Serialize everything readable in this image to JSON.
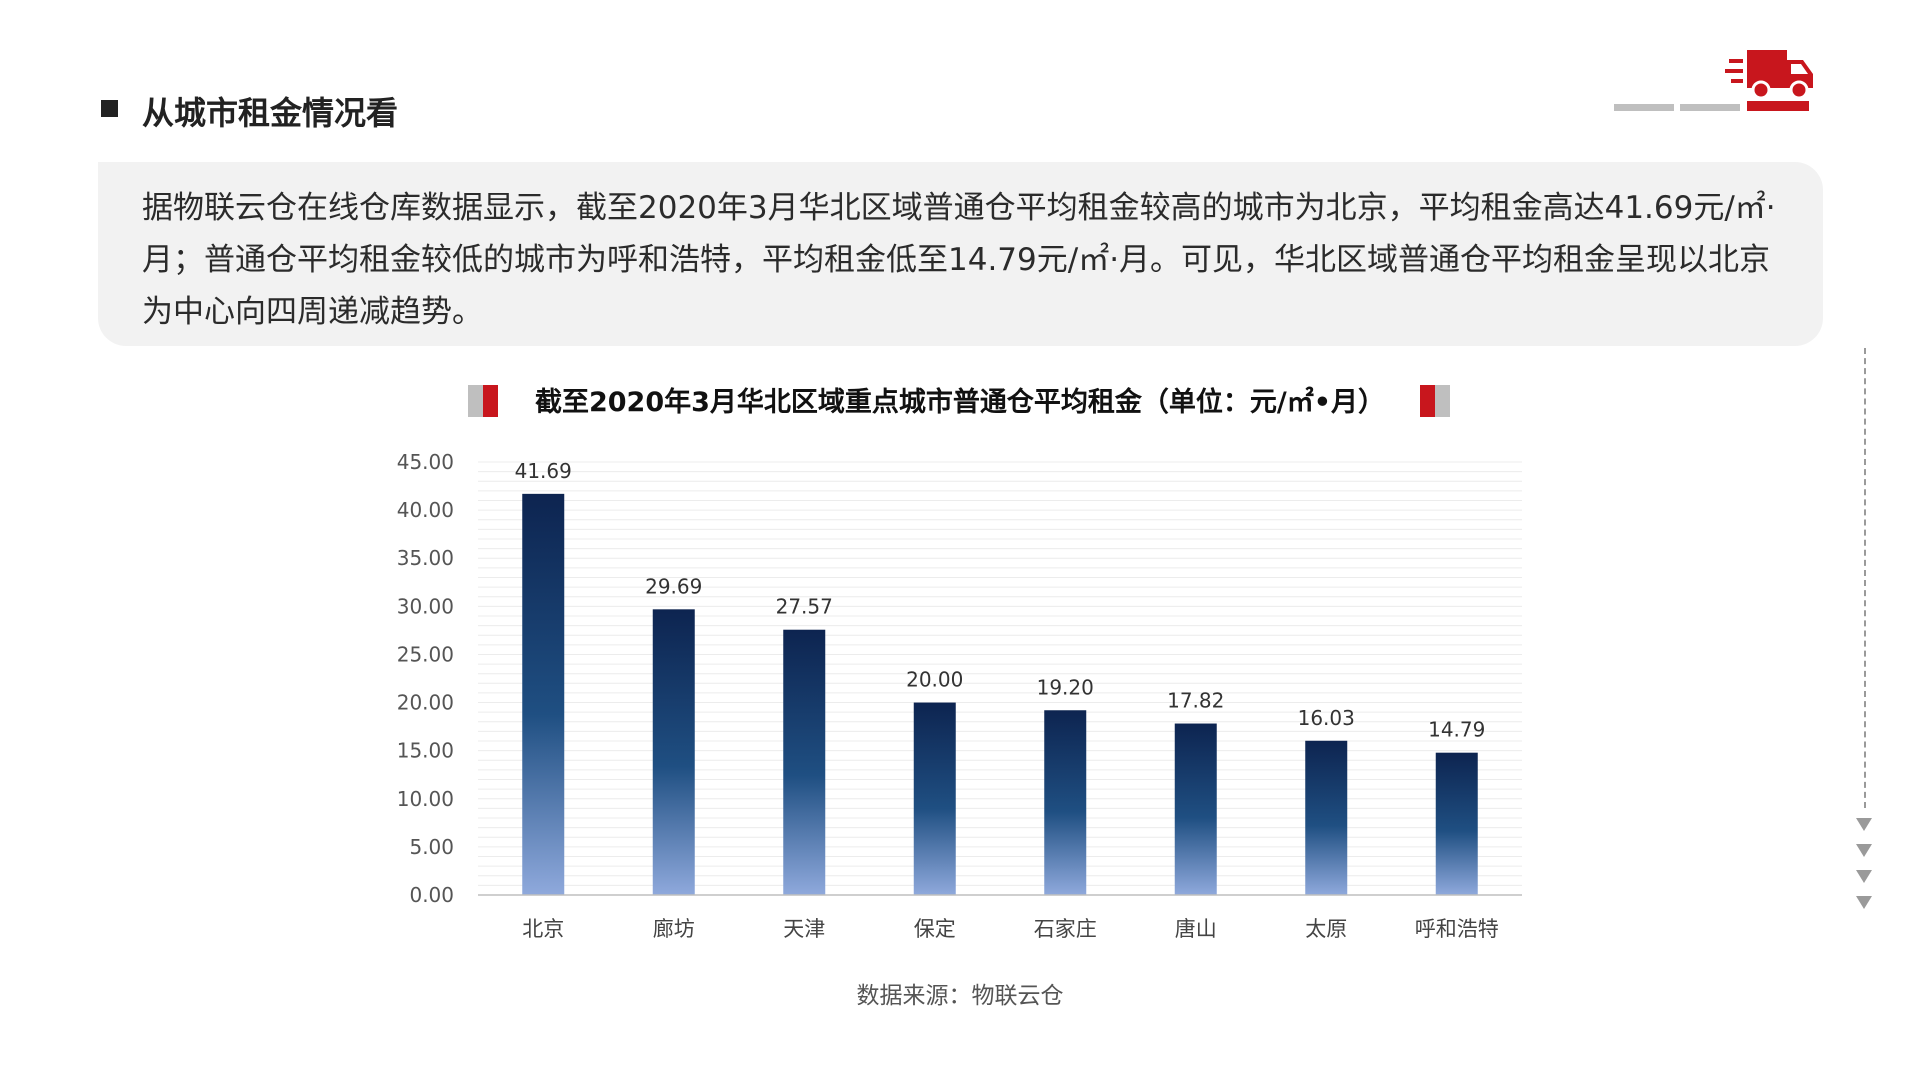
{
  "page": {
    "heading": "从城市租金情况看",
    "summary": "据物联云仓在线仓库数据显示，截至2020年3月华北区域普通仓平均租金较高的城市为北京，平均租金高达41.69元/㎡·月；普通仓平均租金较低的城市为呼和浩特，平均租金低至14.79元/㎡·月。可见，华北区域普通仓平均租金呈现以北京为中心向四周递减趋势。",
    "source": "数据来源：物联云仓",
    "icons": {
      "deco_truck": "delivery-truck-icon",
      "down_arrows": "chevron-down-icon"
    },
    "colors": {
      "accent_red": "#c8161d",
      "accent_gray": "#bfbfbf",
      "bar_top": "#0d2450",
      "bar_mid": "#1f4f82",
      "bar_bottom": "#8fa9dc"
    }
  },
  "chart_data": {
    "type": "bar",
    "title": "截至2020年3月华北区域重点城市普通仓平均租金（单位：元/㎡•月）",
    "categories": [
      "北京",
      "廊坊",
      "天津",
      "保定",
      "石家庄",
      "唐山",
      "太原",
      "呼和浩特"
    ],
    "values": [
      41.69,
      29.69,
      27.57,
      20.0,
      19.2,
      17.82,
      16.03,
      14.79
    ],
    "value_labels": [
      "41.69",
      "29.69",
      "27.57",
      "20.00",
      "19.20",
      "17.82",
      "16.03",
      "14.79"
    ],
    "yticks": [
      "0.00",
      "5.00",
      "10.00",
      "15.00",
      "20.00",
      "25.00",
      "30.00",
      "35.00",
      "40.00",
      "45.00"
    ],
    "ylim": [
      0,
      45
    ],
    "xlabel": "",
    "ylabel": "",
    "grid": true,
    "legend": "none"
  }
}
